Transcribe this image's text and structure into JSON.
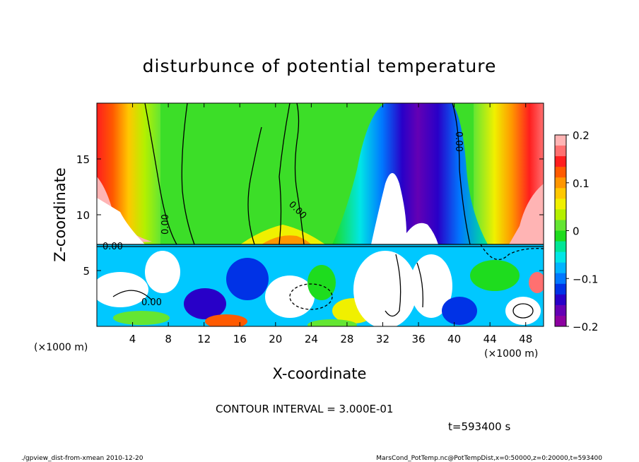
{
  "chart_data": {
    "type": "heatmap",
    "title": "disturbunce of potential temperature",
    "xlabel": "X-coordinate",
    "ylabel": "Z-coordinate",
    "x_unit_left": "(×1000 m)",
    "x_unit_right": "(×1000 m)",
    "xlim": [
      0,
      50
    ],
    "ylim": [
      0,
      20
    ],
    "x_ticks": [
      "4",
      "8",
      "12",
      "16",
      "20",
      "24",
      "28",
      "32",
      "36",
      "40",
      "44",
      "48"
    ],
    "x_tick_values": [
      4,
      8,
      12,
      16,
      20,
      24,
      28,
      32,
      36,
      40,
      44,
      48
    ],
    "y_ticks": [
      "5",
      "10",
      "15"
    ],
    "y_tick_values": [
      5,
      10,
      15
    ],
    "colorbar": {
      "range": [
        -0.2,
        0.2
      ],
      "tick_labels": [
        "0.2",
        "0.1",
        "0",
        "−0.1",
        "−0.2"
      ],
      "tick_values": [
        0.2,
        0.1,
        0,
        -0.1,
        -0.2
      ],
      "colors_top_to_bottom": [
        "#ffb4b4",
        "#ff7070",
        "#ff1e1e",
        "#ff5a00",
        "#ff9600",
        "#ffc800",
        "#f0f000",
        "#b4f000",
        "#64e632",
        "#1edc1e",
        "#00e696",
        "#00e6e6",
        "#00b4ff",
        "#0078ff",
        "#0032e6",
        "#2800c8",
        "#6400b4",
        "#8c00a0"
      ]
    },
    "contour_labels": [
      "0.00",
      "0.00",
      "0.00",
      "0.00",
      "0.00"
    ],
    "contour_interval": "CONTOUR INTERVAL = 3.000E-01",
    "time": "t=593400 s"
  },
  "footer": {
    "left": "./gpview_dist-from-xmean   2010-12-20",
    "right": "MarsCond_PotTemp.nc@PotTempDist,x=0:50000,z=0:20000,t=593400"
  }
}
